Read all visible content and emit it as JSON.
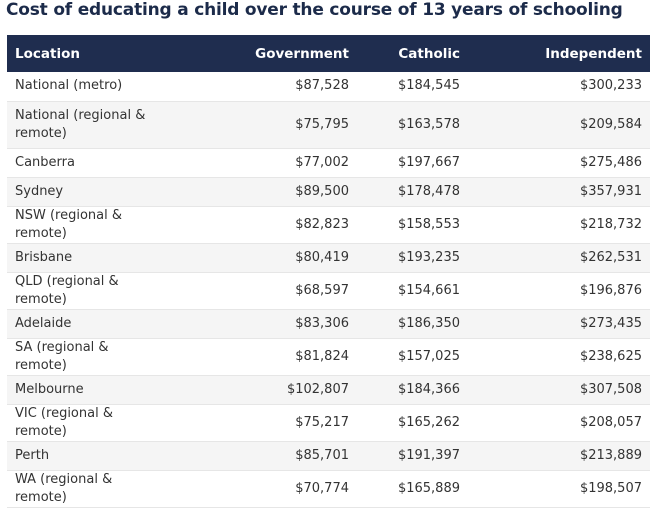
{
  "title": "Cost of educating a child over the course of 13 years of schooling",
  "headers": [
    "Location",
    "Government",
    "Catholic",
    "Independent"
  ],
  "rows": [
    {
      "location": "National (metro)",
      "government": "$87,528",
      "catholic": "$184,545",
      "independent": "$300,233"
    },
    {
      "location": "National (regional & remote)",
      "government": "$75,795",
      "catholic": "$163,578",
      "independent": "$209,584"
    },
    {
      "location": "Canberra",
      "government": "$77,002",
      "catholic": "$197,667",
      "independent": "$275,486"
    },
    {
      "location": "Sydney",
      "government": "$89,500",
      "catholic": "$178,478",
      "independent": "$357,931"
    },
    {
      "location": "NSW (regional & remote)",
      "government": "$82,823",
      "catholic": "$158,553",
      "independent": "$218,732"
    },
    {
      "location": "Brisbane",
      "government": "$80,419",
      "catholic": "$193,235",
      "independent": "$262,531"
    },
    {
      "location": "QLD (regional & remote)",
      "government": "$68,597",
      "catholic": "$154,661",
      "independent": "$196,876"
    },
    {
      "location": "Adelaide",
      "government": "$83,306",
      "catholic": "$186,350",
      "independent": "$273,435"
    },
    {
      "location": "SA (regional & remote)",
      "government": "$81,824",
      "catholic": "$157,025",
      "independent": "$238,625"
    },
    {
      "location": "Melbourne",
      "government": "$102,807",
      "catholic": "$184,366",
      "independent": "$307,508"
    },
    {
      "location": "VIC (regional & remote)",
      "government": "$75,217",
      "catholic": "$165,262",
      "independent": "$208,057"
    },
    {
      "location": "Perth",
      "government": "$85,701",
      "catholic": "$191,397",
      "independent": "$213,889"
    },
    {
      "location": "WA (regional & remote)",
      "government": "$70,774",
      "catholic": "$165,889",
      "independent": "$198,507"
    }
  ]
}
